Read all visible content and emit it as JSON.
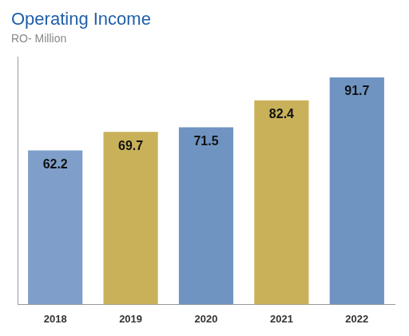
{
  "chart_data": {
    "type": "bar",
    "title": "Operating Income",
    "subtitle": "RO- Million",
    "categories": [
      "2018",
      "2019",
      "2020",
      "2021",
      "2022"
    ],
    "values": [
      62.2,
      69.7,
      71.5,
      82.4,
      91.7
    ],
    "colors": [
      "#7f9fca",
      "#c9b15a",
      "#6f94c2",
      "#c9b15a",
      "#6f94c2"
    ],
    "ylim": [
      0,
      100
    ],
    "grid": false,
    "data_labels": true,
    "tick_labels": "x"
  }
}
